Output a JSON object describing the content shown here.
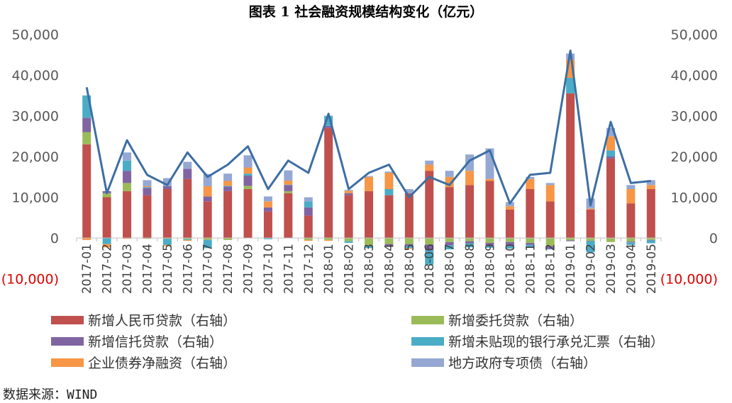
{
  "title": "图表 1   社会融资规模结构变化（亿元）",
  "source": "数据来源：WIND",
  "chart_data": {
    "type": "bar",
    "stacked": true,
    "categories": [
      "2017-01",
      "2017-02",
      "2017-03",
      "2017-04",
      "2017-05",
      "2017-06",
      "2017-07",
      "2017-08",
      "2017-09",
      "2017-10",
      "2017-11",
      "2017-12",
      "2018-01",
      "2018-02",
      "2018-03",
      "2018-04",
      "2018-05",
      "2018-06",
      "2018-07",
      "2018-08",
      "2018-09",
      "2018-10",
      "2018-11",
      "2018-12",
      "2019-01",
      "2019-02",
      "2019-03",
      "2019-04",
      "2019-05"
    ],
    "y_left": {
      "ylim": [
        -10000,
        50000
      ],
      "ticks": [
        "(10,000)",
        "0",
        "10,000",
        "20,000",
        "30,000",
        "40,000",
        "50,000"
      ],
      "tick_values": [
        -10000,
        0,
        10000,
        20000,
        30000,
        40000,
        50000
      ]
    },
    "y_right": {
      "ylim": [
        -10000,
        50000
      ],
      "ticks": [
        "(10,000)",
        "0",
        "10,000",
        "20,000",
        "30,000",
        "40,000",
        "50,000"
      ],
      "tick_values": [
        -10000,
        0,
        10000,
        20000,
        30000,
        40000,
        50000
      ]
    },
    "series": [
      {
        "name": "新增人民币贷款（右轴）",
        "color": "#c0504d",
        "values": [
          23000,
          10000,
          11500,
          10500,
          12000,
          14500,
          9000,
          11500,
          12000,
          6500,
          11000,
          5500,
          27000,
          10500,
          11500,
          10500,
          11000,
          16500,
          12500,
          13000,
          14000,
          7000,
          12000,
          9000,
          35500,
          7000,
          19500,
          8500,
          12000
        ]
      },
      {
        "name": "新增委托贷款（右轴）",
        "color": "#9bbb59",
        "values": [
          3000,
          1000,
          2000,
          -200,
          -200,
          -300,
          -500,
          -500,
          800,
          -100,
          500,
          -500,
          -500,
          -800,
          -1800,
          -1500,
          -1500,
          -1600,
          -1000,
          -800,
          -1200,
          -1000,
          -1200,
          -2000,
          -600,
          -700,
          -1000,
          -900,
          -500
        ]
      },
      {
        "name": "新增信托贷款（右轴）",
        "color": "#8064a2",
        "values": [
          3500,
          500,
          3000,
          1800,
          700,
          2500,
          1200,
          1100,
          2500,
          1000,
          1500,
          2000,
          500,
          500,
          -200,
          -400,
          -500,
          -1500,
          -800,
          -500,
          -700,
          -1000,
          -500,
          -700,
          -200,
          -100,
          500,
          -200,
          -100
        ]
      },
      {
        "name": "新增未贴现的银行承兑汇票（右轴）",
        "color": "#4bacc6",
        "values": [
          5500,
          -1500,
          2500,
          200,
          -1500,
          -200,
          -2000,
          200,
          500,
          -200,
          100,
          1500,
          2500,
          -400,
          -500,
          1500,
          -500,
          -3500,
          -1000,
          -1000,
          -500,
          -600,
          -500,
          -100,
          3800,
          -2700,
          1500,
          -600,
          -700
        ]
      },
      {
        "name": "企业债券净融资（右轴）",
        "color": "#f79646",
        "values": [
          -500,
          -800,
          -200,
          200,
          -300,
          -200,
          2500,
          1200,
          1500,
          1500,
          1000,
          -200,
          -200,
          600,
          3500,
          4000,
          -200,
          1500,
          2500,
          3500,
          500,
          800,
          2500,
          4000,
          4500,
          200,
          3500,
          3500,
          1000
        ]
      },
      {
        "name": "地方政府专项债（右轴）",
        "color": "#95a8d4",
        "values": [
          0,
          0,
          2000,
          1500,
          2000,
          1700,
          3000,
          1800,
          3000,
          1200,
          2500,
          1000,
          0,
          200,
          200,
          300,
          1000,
          1000,
          1500,
          4000,
          7500,
          1000,
          500,
          500,
          1500,
          2500,
          2000,
          1000,
          1200
        ]
      }
    ],
    "total_line": {
      "color": "#3d6ea3",
      "values": [
        37000,
        11000,
        24000,
        15500,
        13000,
        21000,
        15000,
        18000,
        22500,
        12000,
        19000,
        16000,
        30500,
        12000,
        16000,
        18000,
        10000,
        15000,
        13000,
        19000,
        21500,
        8500,
        15500,
        16000,
        46000,
        8000,
        28500,
        13500,
        14000
      ]
    },
    "legend_position": "bottom",
    "grid": false
  }
}
